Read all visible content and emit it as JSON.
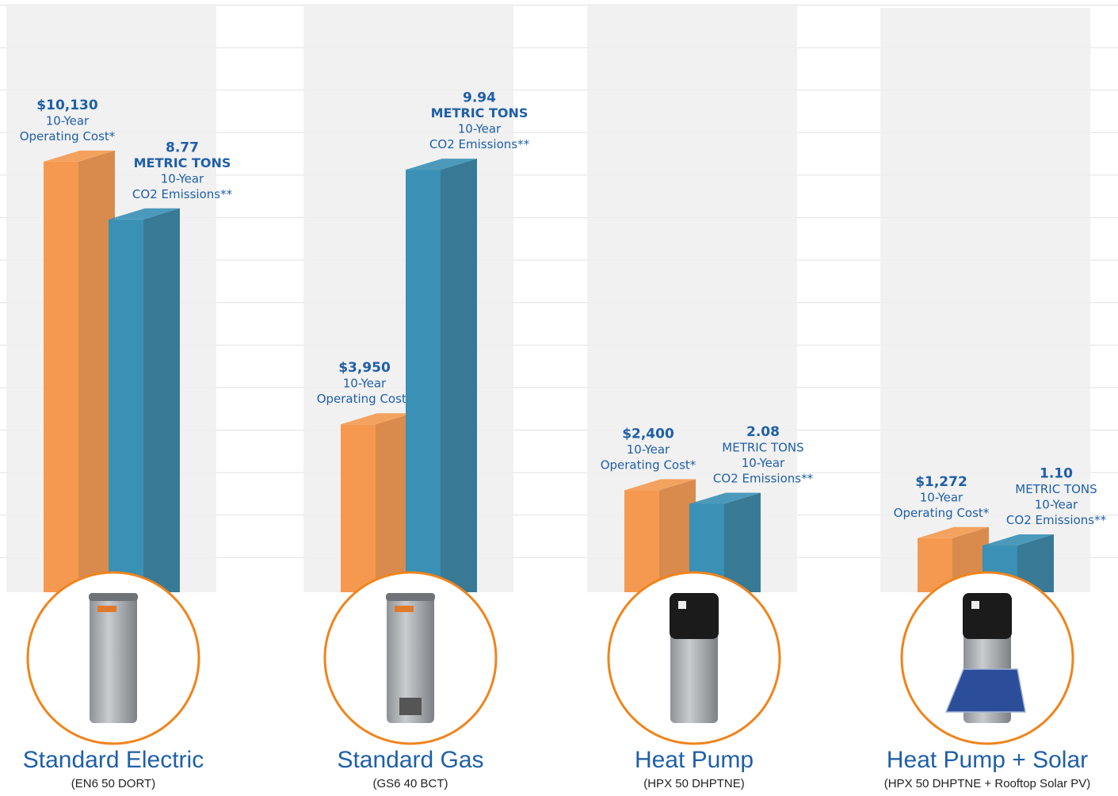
{
  "chart_data": {
    "type": "bar3d",
    "categories": [
      "Standard Electric",
      "Standard Gas",
      "Heat Pump",
      "Heat Pump + Solar"
    ],
    "models": [
      "(EN6 50 DORT)",
      "(GS6 40 BCT)",
      "(HPX 50 DHPTNE)",
      "(HPX 50 DHPTNE + Rooftop Solar PV)"
    ],
    "ylim": [
      0,
      13000
    ],
    "y2lim": [
      0,
      13
    ],
    "series": [
      {
        "name": "10-Year Operating Cost",
        "label_lines": [
          "10-Year",
          "Operating Cost*"
        ],
        "color": "#f4994f",
        "side_color": "#d98b4e",
        "values": [
          10130,
          3950,
          2400,
          1272
        ],
        "value_labels": [
          "$10,130",
          "$3,950",
          "$2,400",
          "$1,272"
        ]
      },
      {
        "name": "10-Year CO2 Emissions",
        "unit": "METRIC TONS",
        "label_lines": [
          "10-Year",
          "CO2 Emissions**"
        ],
        "color": "#3a90b5",
        "side_color": "#387a96",
        "axis": "y2",
        "values": [
          8.77,
          9.94,
          2.08,
          1.1
        ],
        "value_labels": [
          "8.77",
          "9.94",
          "2.08",
          "1.10"
        ]
      }
    ]
  }
}
